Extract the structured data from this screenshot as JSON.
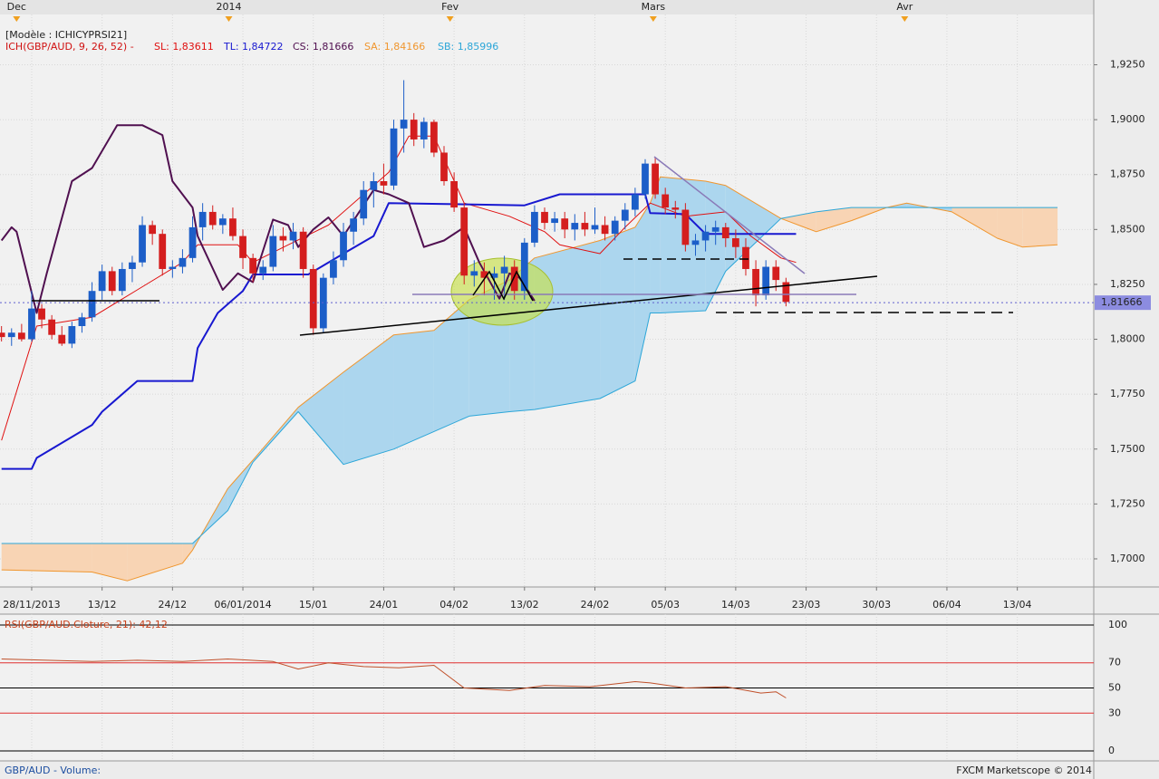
{
  "chart_data": [
    {
      "type": "candlestick",
      "legend_title": "[Modèle : ICHICYPRSI21]",
      "indicator_label": "ICH(GBP/AUD, 9, 26, 52) -",
      "xlim": [
        -0.15,
        108.6
      ],
      "xticks": [
        {
          "value": 3,
          "label": "28/11/2013"
        },
        {
          "value": 10,
          "label": "13/12"
        },
        {
          "value": 17,
          "label": "24/12"
        },
        {
          "value": 24,
          "label": "06/01/2014"
        },
        {
          "value": 31,
          "label": "15/01"
        },
        {
          "value": 38,
          "label": "24/01"
        },
        {
          "value": 45,
          "label": "04/02"
        },
        {
          "value": 52,
          "label": "13/02"
        },
        {
          "value": 59,
          "label": "24/02"
        },
        {
          "value": 66,
          "label": "05/03"
        },
        {
          "value": 73,
          "label": "14/03"
        },
        {
          "value": 80,
          "label": "23/03"
        },
        {
          "value": 87,
          "label": "30/03"
        },
        {
          "value": 94,
          "label": "06/04"
        },
        {
          "value": 101,
          "label": "13/04"
        }
      ],
      "top_xticks": [
        {
          "value": 1.5,
          "label": "Dec"
        },
        {
          "value": 22.6,
          "label": "2014"
        },
        {
          "value": 44.6,
          "label": "Fev"
        },
        {
          "value": 64.8,
          "label": "Mars"
        },
        {
          "value": 89.8,
          "label": "Avr"
        }
      ],
      "ylim": [
        1.6872,
        1.9479
      ],
      "yticks": [
        {
          "value": 1.7,
          "label": "1,7000"
        },
        {
          "value": 1.725,
          "label": "1,7250"
        },
        {
          "value": 1.75,
          "label": "1,7500"
        },
        {
          "value": 1.775,
          "label": "1,7750"
        },
        {
          "value": 1.8,
          "label": "1,8000"
        },
        {
          "value": 1.825,
          "label": "1,8250"
        },
        {
          "value": 1.85,
          "label": "1,8500"
        },
        {
          "value": 1.875,
          "label": "1,8750"
        },
        {
          "value": 1.9,
          "label": "1,9000"
        },
        {
          "value": 1.925,
          "label": "1,9250"
        }
      ],
      "grid": true,
      "last_price": {
        "value": 1.81666,
        "label": "1,81666"
      },
      "up_color": "#1c5ec8",
      "down_color": "#d41e1e",
      "x": [
        0,
        1,
        2,
        3,
        4,
        5,
        6,
        7,
        8,
        9,
        10,
        11,
        12,
        13,
        14,
        15,
        16,
        17,
        18,
        19,
        20,
        21,
        22,
        23,
        24,
        25,
        26,
        27,
        28,
        29,
        30,
        31,
        32,
        33,
        34,
        35,
        36,
        37,
        38,
        39,
        40,
        41,
        42,
        43,
        44,
        45,
        46,
        47,
        48,
        49,
        50,
        51,
        52,
        53,
        54,
        55,
        56,
        57,
        58,
        59,
        60,
        61,
        62,
        63,
        64,
        65,
        66,
        67,
        68,
        69,
        70,
        71,
        72,
        73,
        74,
        75,
        76,
        77,
        78
      ],
      "open": [
        1.803,
        1.801,
        1.803,
        1.8,
        1.814,
        1.809,
        1.802,
        1.798,
        1.806,
        1.81,
        1.822,
        1.831,
        1.822,
        1.832,
        1.835,
        1.852,
        1.848,
        1.832,
        1.833,
        1.837,
        1.851,
        1.858,
        1.852,
        1.855,
        1.847,
        1.837,
        1.83,
        1.833,
        1.847,
        1.845,
        1.849,
        1.832,
        1.805,
        1.828,
        1.836,
        1.849,
        1.855,
        1.868,
        1.872,
        1.87,
        1.896,
        1.9,
        1.891,
        1.899,
        1.885,
        1.872,
        1.86,
        1.829,
        1.831,
        1.828,
        1.83,
        1.833,
        1.822,
        1.844,
        1.858,
        1.853,
        1.855,
        1.85,
        1.853,
        1.85,
        1.852,
        1.848,
        1.854,
        1.859,
        1.866,
        1.88,
        1.866,
        1.86,
        1.859,
        1.843,
        1.845,
        1.849,
        1.851,
        1.846,
        1.842,
        1.832,
        1.82,
        1.833,
        1.826
      ],
      "high": [
        1.806,
        1.805,
        1.807,
        1.822,
        1.816,
        1.811,
        1.806,
        1.808,
        1.812,
        1.826,
        1.834,
        1.833,
        1.835,
        1.838,
        1.856,
        1.854,
        1.85,
        1.836,
        1.841,
        1.856,
        1.862,
        1.861,
        1.857,
        1.86,
        1.85,
        1.839,
        1.836,
        1.852,
        1.851,
        1.853,
        1.851,
        1.834,
        1.83,
        1.84,
        1.853,
        1.858,
        1.872,
        1.876,
        1.88,
        1.9,
        1.918,
        1.903,
        1.901,
        1.9,
        1.888,
        1.876,
        1.862,
        1.836,
        1.835,
        1.833,
        1.838,
        1.836,
        1.846,
        1.861,
        1.86,
        1.858,
        1.858,
        1.857,
        1.858,
        1.86,
        1.856,
        1.856,
        1.862,
        1.869,
        1.882,
        1.883,
        1.869,
        1.863,
        1.862,
        1.848,
        1.852,
        1.854,
        1.853,
        1.85,
        1.846,
        1.836,
        1.836,
        1.836,
        1.828
      ],
      "low": [
        1.799,
        1.797,
        1.799,
        1.799,
        1.805,
        1.8,
        1.797,
        1.796,
        1.803,
        1.808,
        1.818,
        1.82,
        1.82,
        1.826,
        1.833,
        1.843,
        1.829,
        1.828,
        1.83,
        1.835,
        1.845,
        1.85,
        1.848,
        1.845,
        1.832,
        1.826,
        1.827,
        1.831,
        1.84,
        1.841,
        1.828,
        1.802,
        1.803,
        1.825,
        1.833,
        1.843,
        1.852,
        1.86,
        1.866,
        1.868,
        1.885,
        1.888,
        1.887,
        1.883,
        1.87,
        1.858,
        1.825,
        1.824,
        1.82,
        1.818,
        1.818,
        1.818,
        1.818,
        1.842,
        1.85,
        1.849,
        1.846,
        1.845,
        1.847,
        1.848,
        1.845,
        1.845,
        1.85,
        1.856,
        1.864,
        1.864,
        1.857,
        1.855,
        1.84,
        1.838,
        1.84,
        1.843,
        1.842,
        1.837,
        1.829,
        1.815,
        1.818,
        1.822,
        1.815
      ],
      "close": [
        1.801,
        1.803,
        1.8,
        1.814,
        1.809,
        1.802,
        1.798,
        1.806,
        1.81,
        1.822,
        1.831,
        1.822,
        1.832,
        1.835,
        1.852,
        1.848,
        1.832,
        1.833,
        1.837,
        1.851,
        1.858,
        1.852,
        1.855,
        1.847,
        1.837,
        1.83,
        1.833,
        1.847,
        1.845,
        1.849,
        1.832,
        1.805,
        1.828,
        1.836,
        1.849,
        1.855,
        1.868,
        1.872,
        1.87,
        1.896,
        1.9,
        1.891,
        1.899,
        1.885,
        1.872,
        1.86,
        1.829,
        1.831,
        1.828,
        1.83,
        1.833,
        1.822,
        1.844,
        1.858,
        1.853,
        1.855,
        1.85,
        1.853,
        1.85,
        1.852,
        1.848,
        1.854,
        1.859,
        1.866,
        1.88,
        1.866,
        1.86,
        1.859,
        1.843,
        1.845,
        1.849,
        1.851,
        1.846,
        1.842,
        1.832,
        1.82,
        1.833,
        1.827,
        1.817
      ],
      "cloud": {
        "x": [
          0,
          9,
          12.5,
          18,
          19,
          22.5,
          25,
          29.5,
          34,
          39,
          43,
          46.5,
          50.5,
          53,
          59.5,
          63,
          64.5,
          65.5,
          70,
          72,
          77.5,
          81,
          84.5,
          88,
          90,
          94.5,
          99,
          101.5,
          105
        ],
        "bull_fill": "#acd6ee",
        "bear_fill": "#f8d4b4",
        "span_a": {
          "label": "SA: 1,84166",
          "color": "#f0962e",
          "values": [
            1.695,
            1.694,
            1.69,
            1.698,
            1.704,
            1.732,
            1.745,
            1.769,
            1.785,
            1.802,
            1.804,
            1.818,
            1.827,
            1.837,
            1.845,
            1.851,
            1.862,
            1.874,
            1.872,
            1.87,
            1.855,
            1.849,
            1.854,
            1.86,
            1.862,
            1.858,
            1.846,
            1.842,
            1.843
          ]
        },
        "span_b": {
          "label": "SB: 1,85996",
          "color": "#2ca6d8",
          "values": [
            1.707,
            1.707,
            1.707,
            1.707,
            1.707,
            1.722,
            1.744,
            1.767,
            1.743,
            1.75,
            1.758,
            1.765,
            1.767,
            1.768,
            1.773,
            1.781,
            1.812,
            1.812,
            1.813,
            1.831,
            1.855,
            1.858,
            1.86,
            1.86,
            1.86,
            1.86,
            1.86,
            1.86,
            1.86
          ]
        }
      },
      "lines": [
        {
          "label": "SL: 1,83611",
          "color": "#e01010",
          "width": 1,
          "x": [
            0,
            3.5,
            9,
            13.5,
            18,
            19.5,
            23.5,
            25,
            28.5,
            32.5,
            38.5,
            40.5,
            43,
            46,
            50.5,
            54,
            55.5,
            59.5,
            62,
            64.5,
            68,
            72,
            74.5,
            77.5,
            79
          ],
          "values": [
            1.754,
            1.806,
            1.81,
            1.8225,
            1.835,
            1.843,
            1.843,
            1.835,
            1.843,
            1.852,
            1.876,
            1.8925,
            1.8925,
            1.862,
            1.856,
            1.849,
            1.843,
            1.839,
            1.851,
            1.862,
            1.856,
            1.858,
            1.847,
            1.837,
            1.835
          ]
        },
        {
          "label": "TL: 1,84722",
          "color": "#1818d0",
          "width": 2,
          "x": [
            0,
            3,
            3.5,
            9,
            10,
            13.5,
            19,
            19.5,
            21.5,
            24,
            25,
            30.5,
            34,
            37,
            38.5,
            52,
            55.5,
            64,
            64.5,
            68,
            70,
            79
          ],
          "values": [
            1.741,
            1.741,
            1.746,
            1.761,
            1.767,
            1.781,
            1.781,
            1.796,
            1.812,
            1.822,
            1.8295,
            1.8295,
            1.839,
            1.847,
            1.862,
            1.861,
            1.866,
            1.866,
            1.8575,
            1.857,
            1.848,
            1.848
          ]
        },
        {
          "label": "CS: 1,81666",
          "color": "#501050",
          "width": 2,
          "x": [
            0,
            1,
            1.5,
            3.5,
            4.5,
            7,
            9,
            11.5,
            14,
            16,
            17,
            19,
            19.5,
            22,
            23.5,
            25,
            27,
            28.5,
            29.5,
            31,
            32.5,
            34,
            37,
            38.5,
            40.5,
            42,
            44,
            46,
            47.5,
            49.5,
            50.5,
            51.5,
            53
          ],
          "values": [
            1.845,
            1.851,
            1.849,
            1.812,
            1.83,
            1.872,
            1.878,
            1.8975,
            1.8975,
            1.893,
            1.872,
            1.86,
            1.847,
            1.8225,
            1.83,
            1.826,
            1.8545,
            1.852,
            1.842,
            1.85,
            1.8555,
            1.847,
            1.868,
            1.866,
            1.862,
            1.842,
            1.845,
            1.851,
            1.835,
            1.8185,
            1.83,
            1.828,
            1.8175
          ]
        }
      ]
    },
    {
      "type": "line",
      "title": "RSI(GBP/AUD.Cloture, 21): 42,12",
      "xlim": [
        -0.15,
        108.6
      ],
      "ylim": [
        0,
        100
      ],
      "yticks": [
        100,
        70,
        50,
        30,
        0
      ],
      "tick_colors": [
        "#000000",
        "#e03030",
        "#000000",
        "#e03030",
        "#000000"
      ],
      "color": "#c0502a",
      "x": [
        0,
        4.5,
        9,
        13.5,
        18,
        22.5,
        27,
        29.5,
        32.5,
        36,
        39.5,
        43,
        46,
        50.5,
        54,
        58.5,
        63,
        64.5,
        68,
        72,
        75.5,
        77,
        78
      ],
      "values": [
        73,
        72,
        71,
        72,
        71,
        73,
        71,
        65,
        70,
        67,
        66,
        68,
        50,
        48,
        52,
        51,
        55,
        54,
        50,
        51,
        46,
        47,
        42.12
      ]
    }
  ],
  "volume_label": "GBP/AUD - Volume:",
  "footer": "FXCM Marketscope © 2014"
}
